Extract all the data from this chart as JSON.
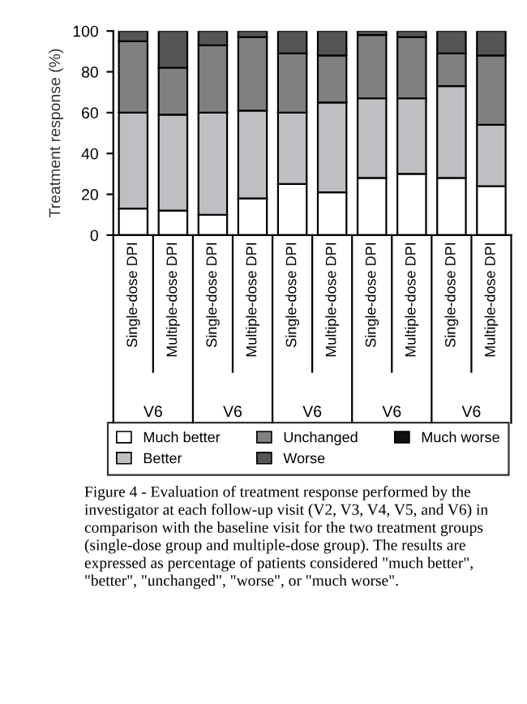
{
  "chart_data": {
    "type": "bar",
    "stacked": true,
    "ylabel": "Treatment response (%)",
    "categories": [
      "Single-dose DPI",
      "Multiple-dose DPI",
      "Single-dose DPI",
      "Multiple-dose DPI",
      "Single-dose DPI",
      "Multiple-dose DPI",
      "Single-dose DPI",
      "Multiple-dose DPI",
      "Single-dose DPI",
      "Multiple-dose DPI"
    ],
    "series": [
      {
        "name": "Much better",
        "color": "#ffffff",
        "values": [
          13,
          12,
          10,
          18,
          25,
          21,
          28,
          30,
          28,
          24
        ]
      },
      {
        "name": "Better",
        "color": "#bfbfc3",
        "values": [
          47,
          47,
          50,
          43,
          35,
          44,
          39,
          37,
          45,
          30
        ]
      },
      {
        "name": "Unchanged",
        "color": "#808083",
        "values": [
          35,
          23,
          33,
          36,
          29,
          23,
          31,
          30,
          16,
          34
        ]
      },
      {
        "name": "Worse",
        "color": "#555558",
        "values": [
          5,
          18,
          7,
          3,
          11,
          12,
          2,
          3,
          11,
          12
        ]
      },
      {
        "name": "Much worse",
        "color": "#111111",
        "values": [
          0,
          0,
          0,
          0,
          0,
          0,
          0,
          0,
          0,
          0
        ]
      }
    ],
    "ylim": [
      0,
      100
    ],
    "yticks": [
      0,
      20,
      40,
      60,
      80,
      100
    ],
    "grid": false,
    "legend": "bottom",
    "annotations": [
      "V6",
      "V6",
      "V6",
      "V6",
      "V6",
      "Figure 4 - Evaluation of treatment response performed by the investigator at each follow-up visit (V2, V3, V4, V5, and V6) in comparison with the baseline visit for the two treatment groups (single-dose group and multiple-dose group). The results are expressed as percentage of patients considered \"much better\", \"better\", \"unchanged\", \"worse\", or \"much worse\"."
    ]
  }
}
